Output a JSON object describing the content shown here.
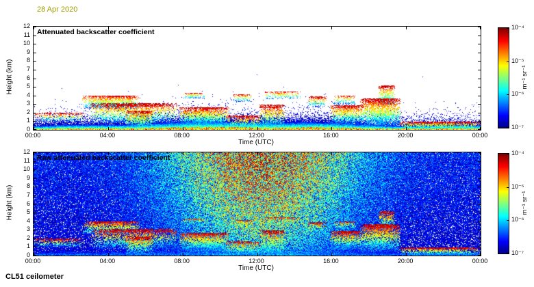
{
  "header": {
    "date": "28 Apr 2020"
  },
  "footer": {
    "instrument": "CL51 ceilometer"
  },
  "colorbar": {
    "ticks": [
      "10⁻⁴",
      "10⁻⁵",
      "10⁻⁶",
      "10⁻⁷"
    ],
    "label": "m⁻¹ sr⁻¹",
    "scale_min": 1e-07,
    "scale_max": 0.0001
  },
  "chart_data": [
    {
      "type": "heatmap",
      "panel": "attenuated",
      "title": "Attenuated backscatter coefficient",
      "xlabel": "Time (UTC)",
      "ylabel": "Height (km)",
      "x_range_hours": [
        0,
        24
      ],
      "x_tick_labels": [
        "00:00",
        "04:00",
        "08:00",
        "12:00",
        "16:00",
        "20:00",
        "00:00"
      ],
      "y_range_km": [
        0,
        12
      ],
      "y_tick_labels": [
        "12",
        "11",
        "10",
        "9",
        "8",
        "7",
        "6",
        "5",
        "4",
        "3",
        "2",
        "1",
        "0"
      ],
      "colormap": "jet",
      "color_scale": "log10",
      "color_range": [
        1e-07,
        0.0001
      ],
      "colorbar_label": "m⁻¹ sr⁻¹",
      "features": {
        "boundary_layer_km": {
          "mean": 0.85,
          "variation": 0.3
        },
        "clouds": [
          {
            "t0": 0.0,
            "t1": 2.7,
            "base": 1.0,
            "top": 2.0,
            "density": 0.45
          },
          {
            "t0": 2.6,
            "t1": 5.7,
            "base": 2.5,
            "top": 4.05,
            "density": 0.7
          },
          {
            "t0": 3.0,
            "t1": 7.7,
            "base": 0.8,
            "top": 3.1,
            "density": 0.55
          },
          {
            "t0": 4.9,
            "t1": 6.4,
            "base": 0.05,
            "top": 2.3,
            "density": 0.6
          },
          {
            "t0": 7.8,
            "t1": 10.5,
            "base": 0.6,
            "top": 2.7,
            "density": 0.75
          },
          {
            "t0": 8.0,
            "t1": 9.2,
            "base": 3.7,
            "top": 4.35,
            "density": 0.45
          },
          {
            "t0": 10.3,
            "t1": 12.2,
            "base": 0.1,
            "top": 1.7,
            "density": 0.5
          },
          {
            "t0": 10.7,
            "t1": 11.7,
            "base": 3.3,
            "top": 4.2,
            "density": 0.45
          },
          {
            "t0": 12.1,
            "t1": 13.5,
            "base": 0.1,
            "top": 3.0,
            "density": 0.55
          },
          {
            "t0": 12.4,
            "t1": 14.3,
            "base": 3.6,
            "top": 4.5,
            "density": 0.4
          },
          {
            "t0": 14.7,
            "t1": 15.7,
            "base": 2.7,
            "top": 3.9,
            "density": 0.45
          },
          {
            "t0": 15.9,
            "t1": 17.7,
            "base": 0.7,
            "top": 2.9,
            "density": 0.7
          },
          {
            "t0": 16.1,
            "t1": 17.3,
            "base": 3.0,
            "top": 4.05,
            "density": 0.45
          },
          {
            "t0": 17.5,
            "t1": 19.7,
            "base": 0.4,
            "top": 3.7,
            "density": 0.75
          },
          {
            "t0": 18.5,
            "t1": 19.4,
            "base": 3.0,
            "top": 5.2,
            "density": 0.6
          },
          {
            "t0": 19.6,
            "t1": 24.0,
            "base": 0.05,
            "top": 1.0,
            "density": 0.7
          }
        ]
      }
    },
    {
      "type": "heatmap",
      "panel": "raw",
      "title": "Raw attenuated backscatter coefficient",
      "xlabel": "Time (UTC)",
      "ylabel": "Height (km)",
      "x_range_hours": [
        0,
        24
      ],
      "x_tick_labels": [
        "00:00",
        "04:00",
        "08:00",
        "12:00",
        "16:00",
        "20:00",
        "00:00"
      ],
      "y_range_km": [
        0,
        12
      ],
      "y_tick_labels": [
        "12",
        "11",
        "10",
        "9",
        "8",
        "7",
        "6",
        "5",
        "4",
        "3",
        "2",
        "1",
        "0"
      ],
      "colormap": "jet",
      "color_scale": "log10",
      "color_range": [
        1e-07,
        0.0001
      ],
      "colorbar_label": "m⁻¹ sr⁻¹",
      "noise": {
        "peak_hour": 12.3,
        "width_hours": 4.8,
        "day_amp": 0.62,
        "night_amp": 0.15
      }
    }
  ]
}
